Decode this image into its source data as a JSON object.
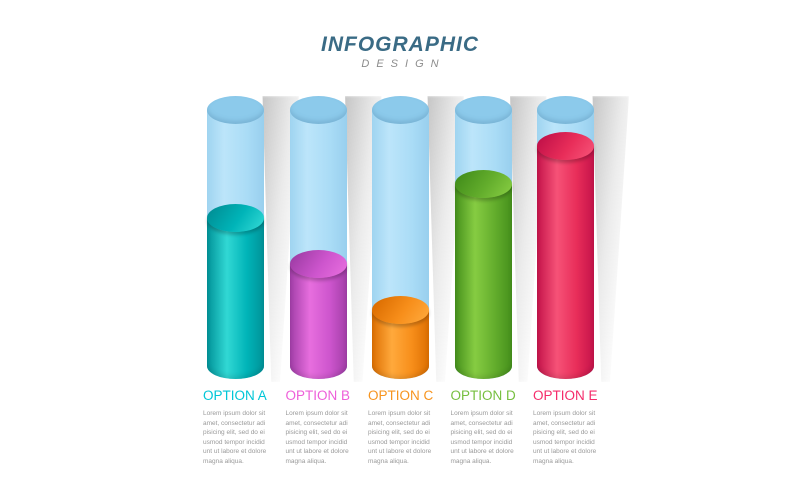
{
  "header": {
    "title": "INFOGRAPHIC",
    "subtitle": "DESIGN",
    "title_color": "#3a6b85",
    "subtitle_color": "#8c8c8c"
  },
  "chart_data": {
    "type": "bar",
    "title": "INFOGRAPHIC DESIGN",
    "categories": [
      "OPTION A",
      "OPTION B",
      "OPTION C",
      "OPTION D",
      "OPTION E"
    ],
    "values": [
      58,
      40,
      22,
      71,
      86
    ],
    "ylabel": "fill level of glass cylinder (percent, estimated from pixels)",
    "ylim": [
      0,
      100
    ],
    "grid": false,
    "legend_position": "none",
    "bar_style": "3d-cylinder inside translucent light-blue cylinder with soft cast shadow"
  },
  "glass": {
    "body_color": "#aadcf6",
    "top_color": "#8ccaeb"
  },
  "options": [
    {
      "label": "OPTION A",
      "pct": 58,
      "label_color": "#00c6d7",
      "body": "#00b4b8",
      "light": "#31d8d4",
      "dark": "#009298",
      "desc": "Lorem ipsum dolor sit amet, consectetur adi pisicing elit, sed do ei usmod tempor incidid unt ut labore et dolore magna aliqua."
    },
    {
      "label": "OPTION B",
      "pct": 40,
      "label_color": "#ee5fd9",
      "body": "#cd55cd",
      "light": "#e76ede",
      "dark": "#a23ea8",
      "desc": "Lorem ipsum dolor sit amet, consectetur adi pisicing elit, sed do ei usmod tempor incidid unt ut labore et dolore magna aliqua."
    },
    {
      "label": "OPTION C",
      "pct": 22,
      "label_color": "#f7941e",
      "body": "#f78e1a",
      "light": "#ffa93c",
      "dark": "#dd6f02",
      "desc": "Lorem ipsum dolor sit amet, consectetur adi pisicing elit, sed do ei usmod tempor incidid unt ut labore et dolore magna aliqua."
    },
    {
      "label": "OPTION D",
      "pct": 71,
      "label_color": "#76bf3f",
      "body": "#63ad2c",
      "light": "#86cc42",
      "dark": "#45901c",
      "desc": "Lorem ipsum dolor sit amet, consectetur adi pisicing elit, sed do ei usmod tempor incidid unt ut labore et dolore magna aliqua."
    },
    {
      "label": "OPTION E",
      "pct": 86,
      "label_color": "#f52c6b",
      "body": "#e82d59",
      "light": "#f65277",
      "dark": "#c4134a",
      "desc": "Lorem ipsum dolor sit amet, consectetur adi pisicing elit, sed do ei usmod tempor incidid unt ut labore et dolore magna aliqua."
    }
  ]
}
